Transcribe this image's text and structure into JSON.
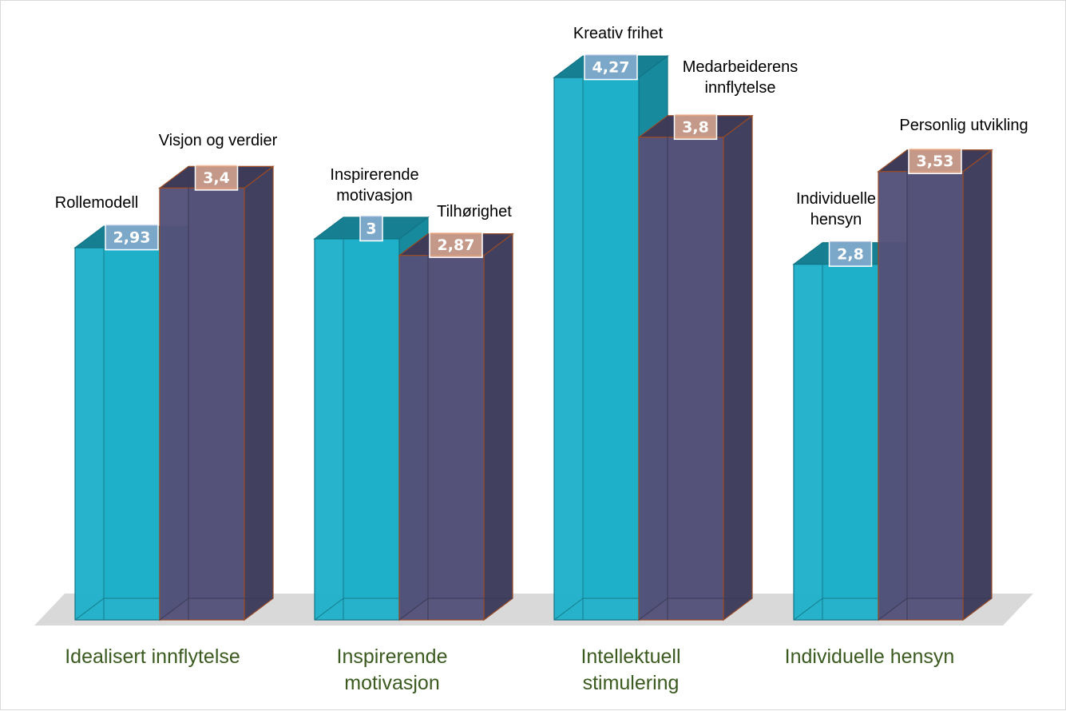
{
  "chart_data": {
    "type": "bar",
    "categories": [
      [
        "Idealisert innflytelse"
      ],
      [
        "Inspirerende",
        "motivasjon"
      ],
      [
        "Intellektuell",
        "stimulering"
      ],
      [
        "Individuelle hensyn"
      ]
    ],
    "bars": [
      [
        {
          "label": [
            "Rollemodell"
          ],
          "value": 2.93,
          "value_label": "2,93"
        },
        {
          "label": [
            "Visjon og verdier"
          ],
          "value": 3.4,
          "value_label": "3,4"
        }
      ],
      [
        {
          "label": [
            "Inspirerende",
            "motivasjon"
          ],
          "value": 3.0,
          "value_label": "3"
        },
        {
          "label": [
            "Tilhørighet"
          ],
          "value": 2.87,
          "value_label": "2,87"
        }
      ],
      [
        {
          "label": [
            "Kreativ frihet"
          ],
          "value": 4.27,
          "value_label": "4,27"
        },
        {
          "label": [
            "Medarbeiderens",
            "innflytelse"
          ],
          "value": 3.8,
          "value_label": "3,8"
        }
      ],
      [
        {
          "label": [
            "Individuelle",
            "hensyn"
          ],
          "value": 2.8,
          "value_label": "2,8"
        },
        {
          "label": [
            "Personlig utvikling"
          ],
          "value": 3.53,
          "value_label": "3,53"
        }
      ]
    ],
    "series_colors": [
      "#1fb1c9",
      "#55527a"
    ],
    "value_label_colors": [
      "#9db4dc",
      "#f2b99a"
    ],
    "category_label_color": "#3a5a1f",
    "floor_color": "#d9d9d9",
    "ylim": [
      0,
      4.5
    ],
    "style": "3d-clustered-column",
    "grid": false,
    "legend": "none"
  }
}
